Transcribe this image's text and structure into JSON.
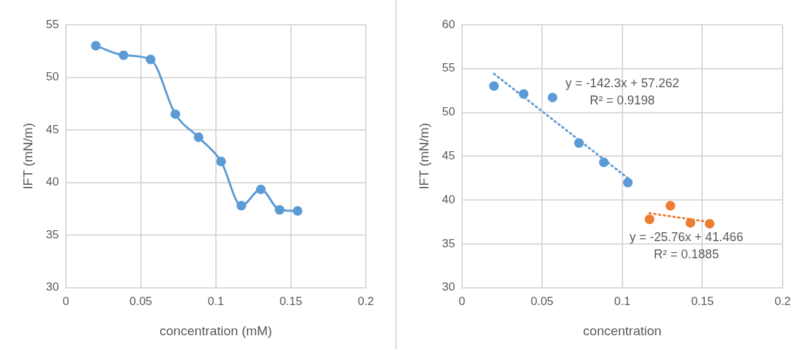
{
  "chart_data": [
    {
      "type": "line",
      "xlabel": "concentration (mM)",
      "ylabel": "IFT (mN/m)",
      "x": [
        0.02,
        0.0385,
        0.0565,
        0.073,
        0.0885,
        0.1035,
        0.117,
        0.13,
        0.1425,
        0.1545
      ],
      "values": [
        53.0,
        52.1,
        51.7,
        46.5,
        44.3,
        42.0,
        37.8,
        39.35,
        37.4,
        37.3
      ],
      "color": "#5b9bd5",
      "marker": "circle",
      "xlim": [
        0,
        0.2
      ],
      "xticks": [
        0,
        0.05,
        0.1,
        0.15,
        0.2
      ],
      "ylim": [
        30,
        55
      ],
      "yticks": [
        30,
        35,
        40,
        45,
        50,
        55
      ],
      "grid": true
    },
    {
      "type": "scatter",
      "xlabel": "concentration",
      "ylabel": "IFT (mN/m)",
      "series": [
        {
          "color": "#5b9bd5",
          "x": [
            0.02,
            0.0385,
            0.0565,
            0.073,
            0.0885,
            0.1035
          ],
          "values": [
            53.0,
            52.1,
            51.7,
            46.5,
            44.3,
            42.0
          ]
        },
        {
          "color": "#ed7d31",
          "x": [
            0.117,
            0.13,
            0.1425,
            0.1545
          ],
          "values": [
            37.8,
            39.35,
            37.4,
            37.3
          ]
        },
        {
          "type": "line",
          "line_style": "dotted",
          "marker": "none",
          "color": "#5b9bd5",
          "x": [
            0.02,
            0.1035
          ],
          "values": [
            54.4,
            42.5
          ]
        },
        {
          "type": "line",
          "line_style": "dotted",
          "marker": "none",
          "color": "#ed7d31",
          "x": [
            0.117,
            0.1545
          ],
          "values": [
            38.5,
            37.5
          ]
        }
      ],
      "marker": "circle",
      "xlim": [
        0,
        0.2
      ],
      "xticks": [
        0,
        0.05,
        0.1,
        0.15,
        0.2
      ],
      "ylim": [
        30,
        60
      ],
      "yticks": [
        30,
        35,
        40,
        45,
        50,
        55,
        60
      ],
      "grid": true,
      "annotations": [
        "y = -142.3x + 57.262",
        "R² = 0.9198",
        "y = -25.76x + 41.466",
        "R² = 0.1885"
      ]
    }
  ]
}
